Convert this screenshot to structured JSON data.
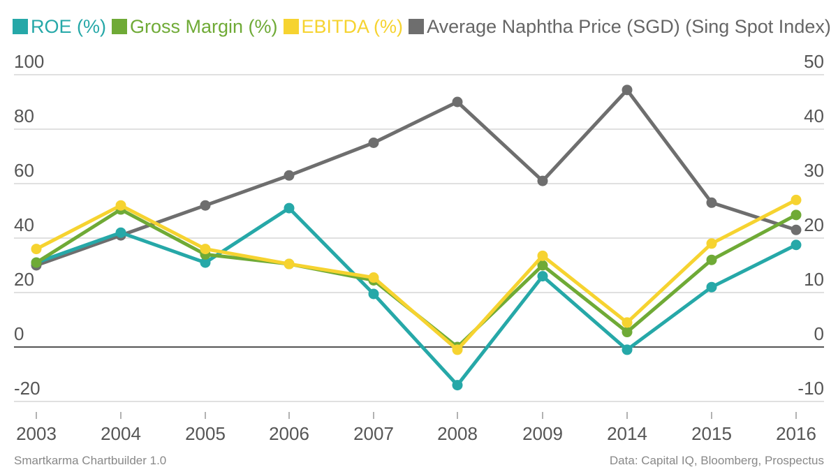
{
  "colors": {
    "roe": "#26A8A8",
    "gross_margin": "#6FAA36",
    "ebitda": "#F6D330",
    "naphtha": "#6E6E6E",
    "grid": "#E0E0E0",
    "zero_line": "#555555",
    "tick_text": "#555555",
    "footer_text": "#888888"
  },
  "footer": {
    "left": "Smartkarma Chartbuilder 1.0",
    "right": "Data: Capital IQ, Bloomberg, Prospectus"
  },
  "chart_data": {
    "type": "line",
    "categories": [
      "2003",
      "2004",
      "2005",
      "2006",
      "2007",
      "2008",
      "2009",
      "2014",
      "2015",
      "2016"
    ],
    "legend_position": "top-left",
    "grid": true,
    "y_left": {
      "ticks": [
        "100",
        "80",
        "60",
        "40",
        "20",
        "0",
        "-20"
      ],
      "range": [
        -20,
        100
      ]
    },
    "y_right": {
      "ticks": [
        "50",
        "40",
        "30",
        "20",
        "10",
        "0",
        "-10"
      ],
      "range": [
        -10,
        50
      ]
    },
    "series": [
      {
        "name": "ROE (%)",
        "color": "#26A8A8",
        "axis": "left",
        "values": [
          31,
          42,
          31,
          51,
          19.5,
          -14,
          26,
          -1,
          22,
          37.5
        ]
      },
      {
        "name": "Gross Margin (%)",
        "color": "#6FAA36",
        "axis": "left",
        "values": [
          31,
          50.5,
          34,
          30.5,
          24.5,
          0,
          30,
          5.5,
          32,
          48.5
        ]
      },
      {
        "name": "EBITDA (%)",
        "color": "#F6D330",
        "axis": "left",
        "values": [
          36,
          52,
          36,
          30.5,
          25.5,
          -1,
          33.5,
          9,
          38,
          54
        ]
      },
      {
        "name": "Average Naphtha Price (SGD) (Sing Spot Index)",
        "color": "#6E6E6E",
        "axis": "right",
        "values": [
          15,
          20.5,
          26,
          31.5,
          37.5,
          45,
          30.5,
          47.2,
          26.5,
          21.5
        ]
      }
    ]
  }
}
